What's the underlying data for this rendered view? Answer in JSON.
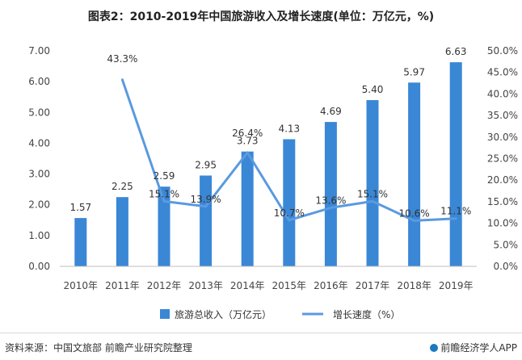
{
  "title": "图表2：2010-2019年中国旅游收入及增长速度(单位：万亿元，%)",
  "footer": {
    "source": "资料来源：中国文旅部 前瞻产业研究院整理",
    "brand": "前瞻经济学人APP",
    "brand_icon": "logo-icon"
  },
  "chart_data": {
    "type": "bar+line",
    "categories": [
      "2010年",
      "2011年",
      "2012年",
      "2013年",
      "2014年",
      "2015年",
      "2016年",
      "2017年",
      "2018年",
      "2019年"
    ],
    "series": [
      {
        "name": "旅游总收入（万亿元）",
        "type": "bar",
        "axis": "left",
        "color": "#3a87d6",
        "values": [
          1.57,
          2.25,
          2.59,
          2.95,
          3.73,
          4.13,
          4.69,
          5.4,
          5.97,
          6.63
        ],
        "labels": [
          "1.57",
          "2.25",
          "2.59",
          "2.95",
          "3.73",
          "4.13",
          "4.69",
          "5.40",
          "5.97",
          "6.63"
        ]
      },
      {
        "name": "增长速度（%）",
        "type": "line",
        "axis": "right",
        "color": "#5a9ae0",
        "values": [
          null,
          43.3,
          15.1,
          13.9,
          26.4,
          10.7,
          13.6,
          15.1,
          10.6,
          11.1
        ],
        "labels": [
          "",
          "43.3%",
          "15.1%",
          "13.9%",
          "26.4%",
          "10.7%",
          "13.6%",
          "15.1%",
          "10.6%",
          "11.1%"
        ]
      }
    ],
    "y_left": {
      "min": 0,
      "max": 7,
      "ticks": [
        "0.00",
        "1.00",
        "2.00",
        "3.00",
        "4.00",
        "5.00",
        "6.00",
        "7.00"
      ]
    },
    "y_right": {
      "min": 0,
      "max": 50,
      "ticks": [
        "0.0%",
        "5.0%",
        "10.0%",
        "15.0%",
        "20.0%",
        "25.0%",
        "30.0%",
        "35.0%",
        "40.0%",
        "45.0%",
        "50.0%"
      ]
    },
    "legend_position": "bottom",
    "grid": false
  }
}
